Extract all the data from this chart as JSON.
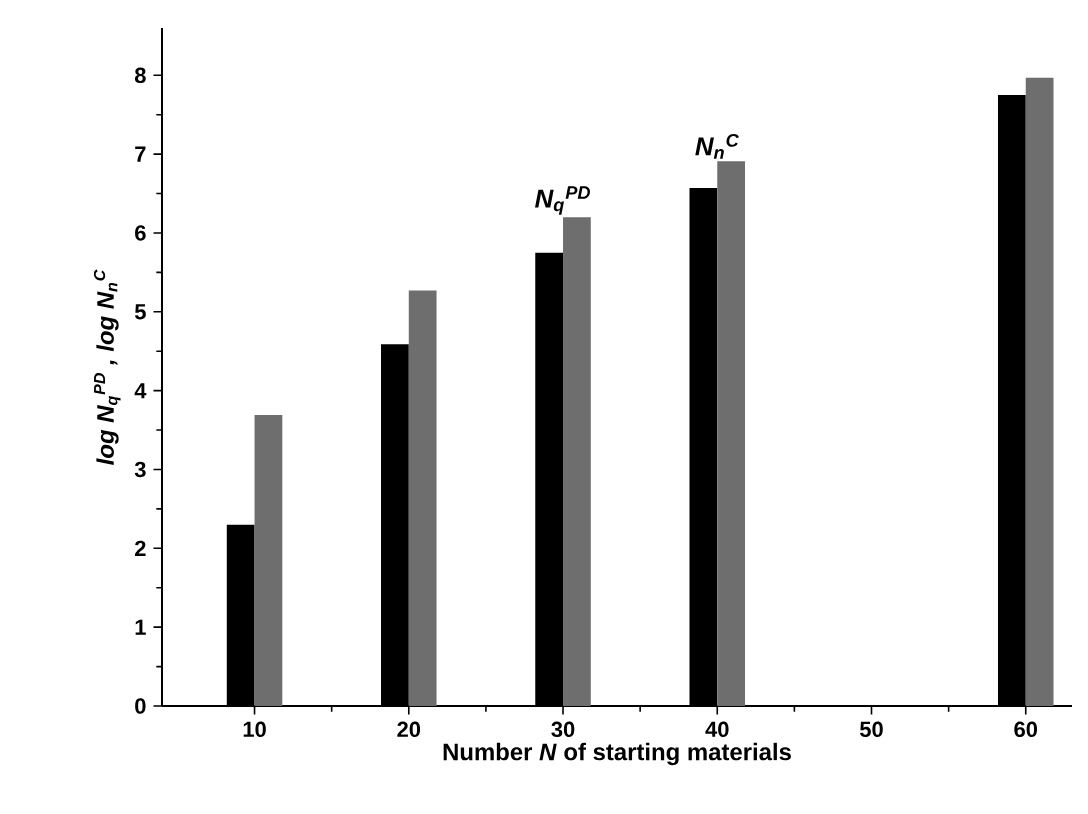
{
  "chart_data": {
    "type": "bar",
    "xlabel": "Number *N* of starting materials",
    "ylabel": "log N$_{q}$$^{PD}$ ,  log N$_{n}$$^{C}$",
    "x": [
      10,
      20,
      30,
      40,
      60
    ],
    "series": [
      {
        "color": "#000000",
        "values": [
          2.3,
          4.59,
          5.75,
          6.57,
          7.75
        ]
      },
      {
        "color": "#6e6e6e",
        "values": [
          3.69,
          5.27,
          6.2,
          6.91,
          7.97
        ]
      }
    ],
    "annotations": [
      {
        "text": "N$_{q}$$^{PD}$",
        "x": 30,
        "y": 6.2
      },
      {
        "text": "N$_{n}$$^{C}$",
        "x": 40,
        "y": 6.91
      }
    ],
    "xlim": [
      4,
      63
    ],
    "xticks": [
      10,
      20,
      30,
      40,
      50,
      60
    ],
    "ylim": [
      0,
      8.6
    ],
    "yticks": [
      0,
      1,
      2,
      3,
      4,
      5,
      6,
      7,
      8
    ]
  }
}
